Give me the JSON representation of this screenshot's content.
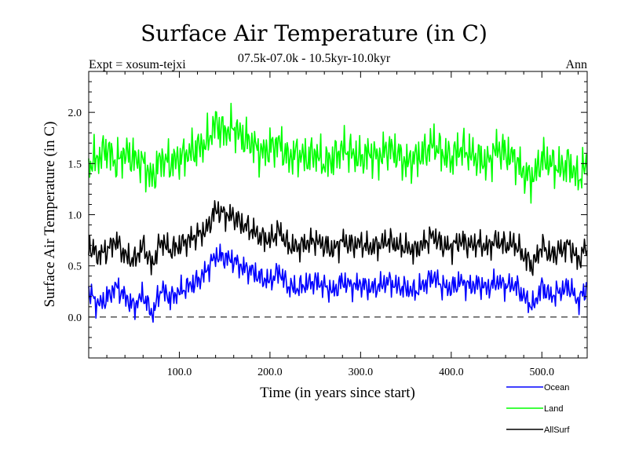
{
  "chart_data": {
    "type": "line",
    "title": "Surface Air Temperature (in C)",
    "subtitle": "07.5k-07.0k - 10.5kyr-10.0kyr",
    "experiment_label": "Expt = xosum-tejxi",
    "period_label": "Ann",
    "xlabel": "Time (in years since start)",
    "ylabel": "Surface Air Temperature (in C)",
    "xlim": [
      0,
      550
    ],
    "ylim": [
      -0.4,
      2.4
    ],
    "x_ticks": [
      100,
      200,
      300,
      400,
      500
    ],
    "x_tick_labels": [
      "100.0",
      "200.0",
      "300.0",
      "400.0",
      "500.0"
    ],
    "y_ticks": [
      0.0,
      0.5,
      1.0,
      1.5,
      2.0
    ],
    "y_tick_labels": [
      "0.0",
      "0.5",
      "1.0",
      "1.5",
      "2.0"
    ],
    "zero_line": true,
    "series": [
      {
        "name": "Ocean",
        "color": "#0000ff",
        "x": [
          0,
          10,
          20,
          30,
          40,
          50,
          60,
          70,
          80,
          90,
          100,
          110,
          120,
          130,
          140,
          150,
          160,
          170,
          180,
          190,
          200,
          210,
          220,
          230,
          240,
          250,
          260,
          270,
          280,
          290,
          300,
          310,
          320,
          330,
          340,
          350,
          360,
          370,
          380,
          390,
          400,
          410,
          420,
          430,
          440,
          450,
          460,
          470,
          480,
          490,
          500,
          510,
          520,
          530,
          540,
          550
        ],
        "values": [
          0.25,
          0.12,
          0.18,
          0.3,
          0.2,
          0.1,
          0.22,
          0.02,
          0.28,
          0.18,
          0.25,
          0.3,
          0.35,
          0.45,
          0.6,
          0.58,
          0.55,
          0.48,
          0.45,
          0.38,
          0.35,
          0.45,
          0.3,
          0.28,
          0.32,
          0.35,
          0.3,
          0.25,
          0.35,
          0.3,
          0.32,
          0.28,
          0.3,
          0.35,
          0.3,
          0.28,
          0.25,
          0.32,
          0.4,
          0.3,
          0.28,
          0.35,
          0.3,
          0.32,
          0.28,
          0.35,
          0.3,
          0.32,
          0.2,
          0.1,
          0.3,
          0.2,
          0.25,
          0.3,
          0.15,
          0.3
        ]
      },
      {
        "name": "Land",
        "color": "#00ff00",
        "x": [
          0,
          10,
          20,
          30,
          40,
          50,
          60,
          70,
          80,
          90,
          100,
          110,
          120,
          130,
          140,
          150,
          160,
          170,
          180,
          190,
          200,
          210,
          220,
          230,
          240,
          250,
          260,
          270,
          280,
          290,
          300,
          310,
          320,
          330,
          340,
          350,
          360,
          370,
          380,
          390,
          400,
          410,
          420,
          430,
          440,
          450,
          460,
          470,
          480,
          490,
          500,
          510,
          520,
          530,
          540,
          550
        ],
        "values": [
          1.5,
          1.55,
          1.65,
          1.5,
          1.6,
          1.55,
          1.5,
          1.35,
          1.55,
          1.5,
          1.55,
          1.6,
          1.65,
          1.7,
          1.9,
          1.8,
          1.85,
          1.75,
          1.7,
          1.6,
          1.65,
          1.7,
          1.55,
          1.6,
          1.55,
          1.6,
          1.5,
          1.55,
          1.65,
          1.6,
          1.55,
          1.6,
          1.55,
          1.65,
          1.6,
          1.5,
          1.55,
          1.6,
          1.7,
          1.6,
          1.55,
          1.65,
          1.6,
          1.55,
          1.5,
          1.65,
          1.6,
          1.55,
          1.4,
          1.35,
          1.55,
          1.5,
          1.45,
          1.5,
          1.35,
          1.5
        ]
      },
      {
        "name": "AllSurf",
        "color": "#000000",
        "x": [
          0,
          10,
          20,
          30,
          40,
          50,
          60,
          70,
          80,
          90,
          100,
          110,
          120,
          130,
          140,
          150,
          160,
          170,
          180,
          190,
          200,
          210,
          220,
          230,
          240,
          250,
          260,
          270,
          280,
          290,
          300,
          310,
          320,
          330,
          340,
          350,
          360,
          370,
          380,
          390,
          400,
          410,
          420,
          430,
          440,
          450,
          460,
          470,
          480,
          490,
          500,
          510,
          520,
          530,
          540,
          550
        ],
        "values": [
          0.7,
          0.6,
          0.65,
          0.75,
          0.6,
          0.55,
          0.7,
          0.5,
          0.75,
          0.65,
          0.7,
          0.75,
          0.8,
          0.85,
          1.05,
          1.0,
          0.98,
          0.9,
          0.85,
          0.78,
          0.75,
          0.85,
          0.7,
          0.68,
          0.72,
          0.75,
          0.7,
          0.65,
          0.75,
          0.7,
          0.72,
          0.68,
          0.7,
          0.75,
          0.7,
          0.68,
          0.65,
          0.72,
          0.8,
          0.7,
          0.68,
          0.75,
          0.7,
          0.72,
          0.68,
          0.75,
          0.7,
          0.72,
          0.6,
          0.5,
          0.7,
          0.6,
          0.65,
          0.7,
          0.55,
          0.7
        ]
      }
    ]
  }
}
